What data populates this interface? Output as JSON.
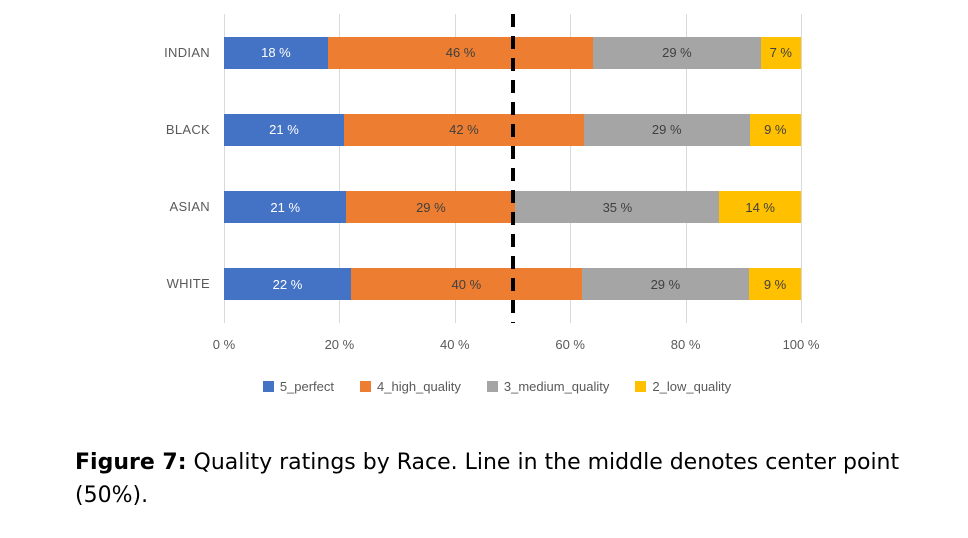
{
  "chart_data": {
    "type": "bar",
    "orientation": "horizontal",
    "stacked": true,
    "title": "",
    "categories": [
      "INDIAN",
      "BLACK",
      "ASIAN",
      "WHITE"
    ],
    "series": [
      {
        "name": "5_perfect",
        "color": "#4472C4",
        "label_color": "#FFFFFF",
        "values": [
          18,
          21,
          21,
          22
        ]
      },
      {
        "name": "4_high_quality",
        "color": "#ED7D31",
        "label_color": "#404040",
        "values": [
          46,
          42,
          29,
          40
        ]
      },
      {
        "name": "3_medium_quality",
        "color": "#A5A5A5",
        "label_color": "#404040",
        "values": [
          29,
          29,
          35,
          29
        ]
      },
      {
        "name": "2_low_quality",
        "color": "#FFC000",
        "label_color": "#404040",
        "values": [
          7,
          9,
          14,
          9
        ]
      }
    ],
    "value_suffix": " %",
    "x_ticks": [
      "0 %",
      "20 %",
      "40 %",
      "60 %",
      "80 %",
      "100 %"
    ],
    "xlim": [
      0,
      100
    ],
    "grid": true,
    "gridline_color": "#D9D9D9",
    "reference_line": {
      "value": 50,
      "style": "dashed",
      "color": "#000000"
    },
    "legend_position": "bottom"
  },
  "caption": {
    "label": "Figure 7:",
    "text": " Quality ratings by Race. Line in the middle denotes center point (50%)."
  }
}
